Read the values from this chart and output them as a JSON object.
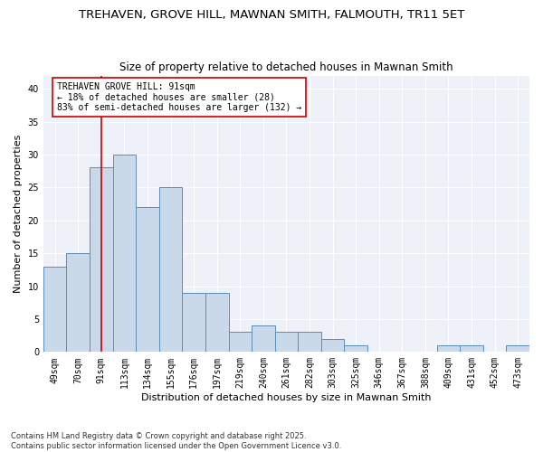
{
  "title_line1": "TREHAVEN, GROVE HILL, MAWNAN SMITH, FALMOUTH, TR11 5ET",
  "title_line2": "Size of property relative to detached houses in Mawnan Smith",
  "xlabel": "Distribution of detached houses by size in Mawnan Smith",
  "ylabel": "Number of detached properties",
  "categories": [
    "49sqm",
    "70sqm",
    "91sqm",
    "113sqm",
    "134sqm",
    "155sqm",
    "176sqm",
    "197sqm",
    "219sqm",
    "240sqm",
    "261sqm",
    "282sqm",
    "303sqm",
    "325sqm",
    "346sqm",
    "367sqm",
    "388sqm",
    "409sqm",
    "431sqm",
    "452sqm",
    "473sqm"
  ],
  "values": [
    13,
    15,
    28,
    30,
    22,
    25,
    9,
    9,
    3,
    4,
    3,
    3,
    2,
    1,
    0,
    0,
    0,
    1,
    1,
    0,
    1
  ],
  "bar_color": "#c9d9ea",
  "bar_edgecolor": "#5b8db8",
  "bar_linewidth": 0.7,
  "highlight_index": 2,
  "highlight_line_color": "#cc0000",
  "annotation_text": "TREHAVEN GROVE HILL: 91sqm\n← 18% of detached houses are smaller (28)\n83% of semi-detached houses are larger (132) →",
  "annotation_box_color": "#ffffff",
  "annotation_box_edgecolor": "#cc0000",
  "ylim": [
    0,
    42
  ],
  "yticks": [
    0,
    5,
    10,
    15,
    20,
    25,
    30,
    35,
    40
  ],
  "bg_color": "#ffffff",
  "plot_bg_color": "#eef2f8",
  "grid_color": "#ffffff",
  "footnote": "Contains HM Land Registry data © Crown copyright and database right 2025.\nContains public sector information licensed under the Open Government Licence v3.0.",
  "title_fontsize": 9.5,
  "subtitle_fontsize": 8.5,
  "axis_label_fontsize": 8,
  "tick_fontsize": 7,
  "annot_fontsize": 7
}
